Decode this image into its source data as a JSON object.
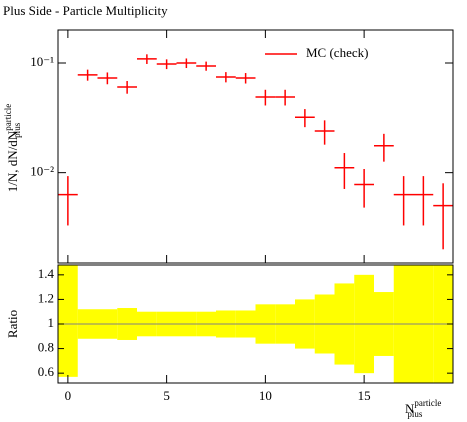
{
  "chart_data": [
    {
      "type": "errorbar",
      "title": "Plus Side - Particle Multiplicity",
      "ylabel": "1/N, dN/dN",
      "ylabel_sup": "particle",
      "ylabel_sub": "plus",
      "log_y": true,
      "ylim": [
        0.0015,
        0.2
      ],
      "yticks": [
        {
          "value": 0.1,
          "label": "10⁻¹"
        },
        {
          "value": 0.01,
          "label": "10⁻²"
        }
      ],
      "xlim": [
        -0.5,
        19.5
      ],
      "legend": "upper right",
      "x": [
        0,
        1,
        2,
        3,
        4,
        5,
        6,
        7,
        8,
        9,
        10,
        11,
        12,
        13,
        14,
        15,
        16,
        17,
        18,
        19
      ],
      "xerr": 0.5,
      "series": [
        {
          "name": "MC (check)",
          "color": "#ff0000",
          "values": [
            0.0063,
            0.078,
            0.073,
            0.0605,
            0.109,
            0.098,
            0.1,
            0.094,
            0.0746,
            0.073,
            0.049,
            0.049,
            0.032,
            0.024,
            0.0111,
            0.0078,
            0.0176,
            0.0063,
            0.0063,
            0.005
          ],
          "yerr": [
            0.003,
            0.009,
            0.009,
            0.008,
            0.011,
            0.01,
            0.01,
            0.009,
            0.008,
            0.008,
            0.008,
            0.008,
            0.006,
            0.006,
            0.004,
            0.003,
            0.005,
            0.003,
            0.003,
            0.003
          ]
        }
      ]
    },
    {
      "type": "ratio",
      "ylabel": "Ratio",
      "ylim": [
        0.52,
        1.48
      ],
      "yticks": [
        0.6,
        0.8,
        1,
        1.2,
        1.4
      ],
      "xlim": [
        -0.5,
        19.5
      ],
      "xticks": [
        0,
        5,
        10,
        15
      ],
      "xlabel": "N",
      "xlabel_sup": "particle",
      "xlabel_sub": "plus",
      "x": [
        0,
        1,
        2,
        3,
        4,
        5,
        6,
        7,
        8,
        9,
        10,
        11,
        12,
        13,
        14,
        15,
        16,
        17,
        18,
        19
      ],
      "xerr": 0.5,
      "band_color": "#ffff00",
      "line_color": "#808080",
      "values": [
        1,
        1,
        1,
        1,
        1,
        1,
        1,
        1,
        1,
        1,
        1,
        1,
        1,
        1,
        1,
        1,
        1,
        1,
        1,
        1
      ],
      "band_lower": [
        0.57,
        0.88,
        0.88,
        0.87,
        0.9,
        0.9,
        0.9,
        0.9,
        0.89,
        0.89,
        0.84,
        0.84,
        0.8,
        0.76,
        0.67,
        0.6,
        0.74,
        0.52,
        0.52,
        0.52
      ],
      "band_upper": [
        1.48,
        1.12,
        1.12,
        1.13,
        1.1,
        1.1,
        1.1,
        1.1,
        1.11,
        1.11,
        1.16,
        1.16,
        1.2,
        1.24,
        1.33,
        1.4,
        1.26,
        1.48,
        1.48,
        1.48
      ]
    }
  ]
}
